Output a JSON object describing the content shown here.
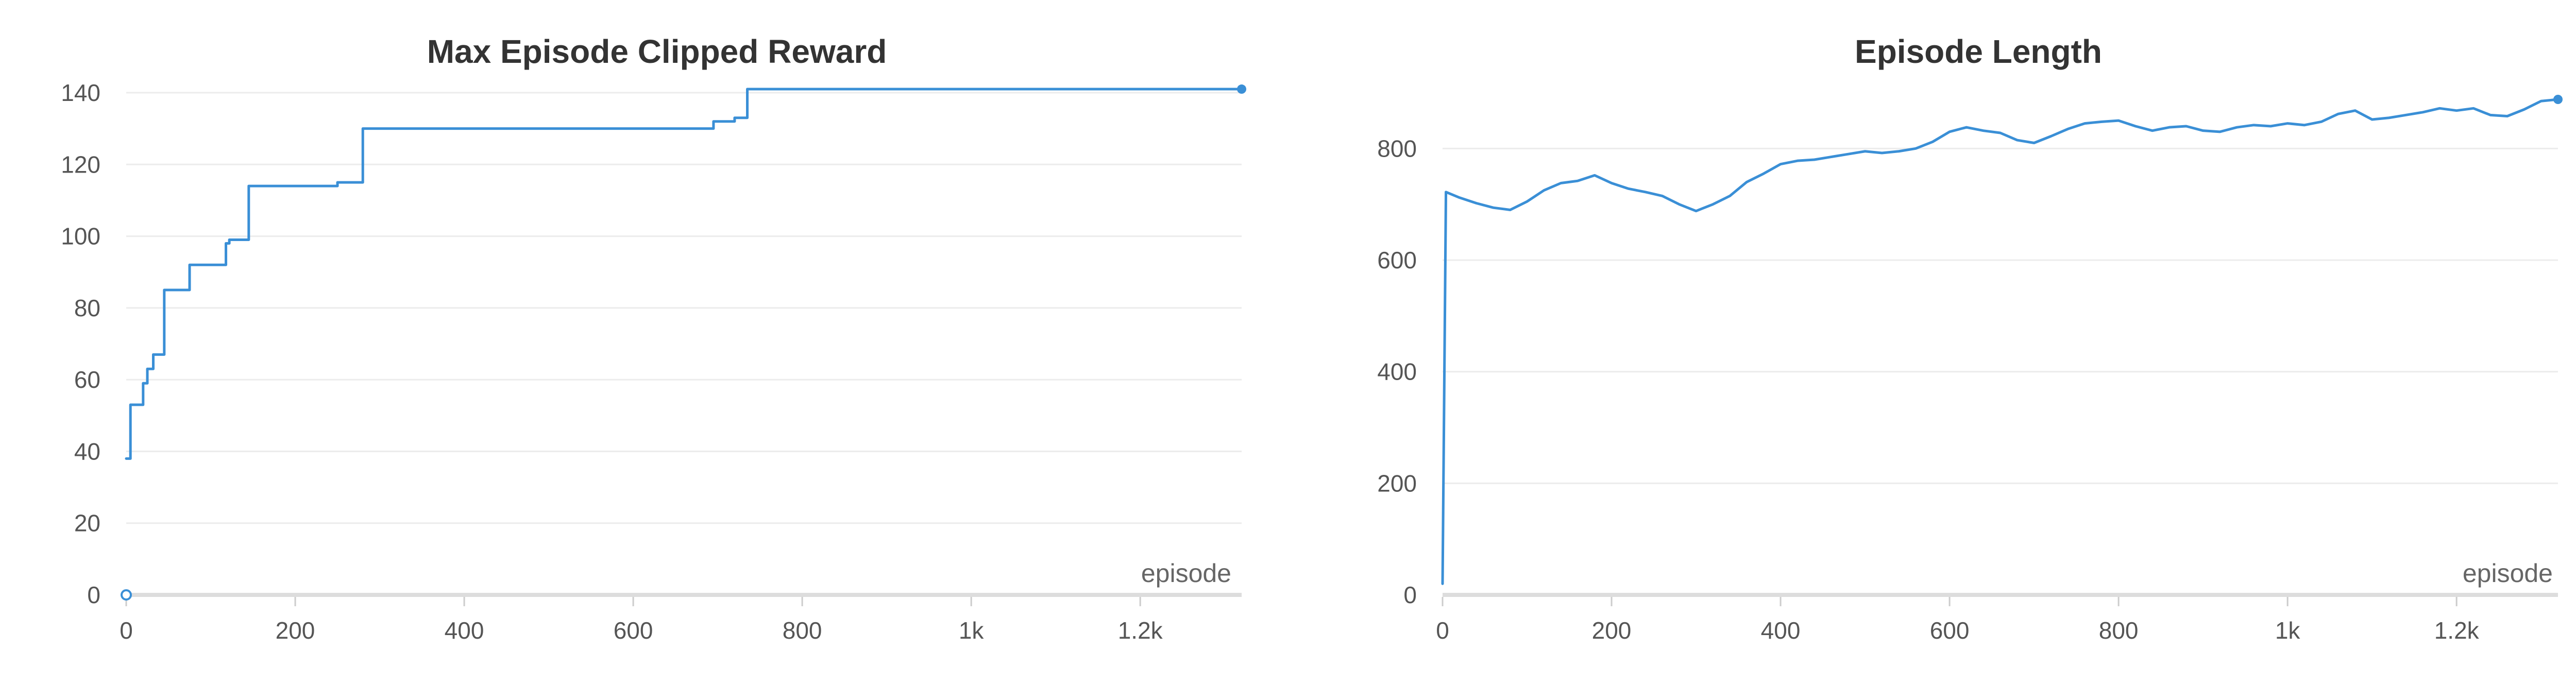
{
  "colors": {
    "series": "#3a8fd6",
    "grid": "#ececec",
    "axis": "#dddddd",
    "text": "#555555"
  },
  "chart_data": [
    {
      "type": "line",
      "title": "Max Episode Clipped Reward",
      "xlabel": "episode",
      "ylabel": "",
      "xlim": [
        0,
        1320
      ],
      "ylim": [
        0,
        140
      ],
      "x_ticks": [
        0,
        200,
        400,
        600,
        800,
        1000,
        1200
      ],
      "x_tick_labels": [
        "0",
        "200",
        "400",
        "600",
        "800",
        "1k",
        "1.2k"
      ],
      "y_ticks": [
        0,
        20,
        40,
        60,
        80,
        100,
        120,
        140
      ],
      "y_tick_labels": [
        "0",
        "20",
        "40",
        "60",
        "80",
        "100",
        "120",
        "140"
      ],
      "grid": true,
      "step": true,
      "series": [
        {
          "x": [
            0,
            5,
            20,
            25,
            32,
            45,
            75,
            118,
            122,
            145,
            250,
            280,
            695,
            720,
            735,
            1320
          ],
          "y": [
            38,
            53,
            59,
            63,
            67,
            85,
            92,
            98,
            99,
            114,
            115,
            130,
            132,
            133,
            141,
            141
          ]
        }
      ]
    },
    {
      "type": "line",
      "title": "Episode Length",
      "xlabel": "episode",
      "ylabel": "",
      "xlim": [
        0,
        1320
      ],
      "ylim": [
        0,
        900
      ],
      "x_ticks": [
        0,
        200,
        400,
        600,
        800,
        1000,
        1200
      ],
      "x_tick_labels": [
        "0",
        "200",
        "400",
        "600",
        "800",
        "1k",
        "1.2k"
      ],
      "y_ticks": [
        0,
        200,
        400,
        600,
        800
      ],
      "y_tick_labels": [
        "0",
        "200",
        "400",
        "600",
        "800"
      ],
      "grid": true,
      "step": false,
      "series": [
        {
          "x": [
            0,
            4,
            20,
            40,
            60,
            80,
            100,
            120,
            140,
            160,
            180,
            200,
            220,
            240,
            260,
            280,
            300,
            320,
            340,
            360,
            380,
            400,
            420,
            440,
            460,
            480,
            500,
            520,
            540,
            560,
            580,
            600,
            620,
            640,
            660,
            680,
            700,
            720,
            740,
            760,
            780,
            800,
            820,
            840,
            860,
            880,
            900,
            920,
            940,
            960,
            980,
            1000,
            1020,
            1040,
            1060,
            1080,
            1100,
            1120,
            1140,
            1160,
            1180,
            1200,
            1220,
            1240,
            1260,
            1280,
            1300,
            1320
          ],
          "y": [
            20,
            722,
            712,
            702,
            694,
            690,
            705,
            725,
            738,
            742,
            752,
            738,
            728,
            722,
            715,
            700,
            688,
            700,
            715,
            740,
            755,
            772,
            778,
            780,
            785,
            790,
            795,
            792,
            795,
            800,
            812,
            830,
            838,
            832,
            828,
            815,
            810,
            822,
            835,
            845,
            848,
            850,
            840,
            832,
            838,
            840,
            832,
            830,
            838,
            842,
            840,
            845,
            842,
            848,
            862,
            868,
            852,
            855,
            860,
            865,
            872,
            868,
            872,
            860,
            858,
            870,
            885,
            888
          ]
        }
      ]
    }
  ]
}
